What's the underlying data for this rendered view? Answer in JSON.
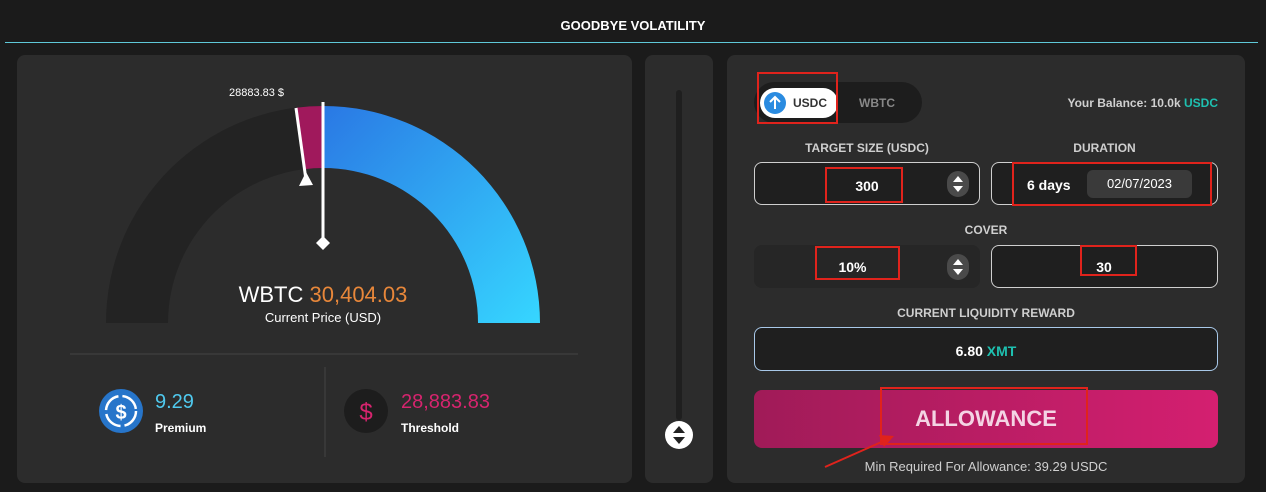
{
  "header": {
    "title": "GOODBYE VOLATILITY"
  },
  "gauge": {
    "threshold_marker": "28883.83 $",
    "asset": "WBTC",
    "price": "30,404.03",
    "price_caption": "Current Price (USD)"
  },
  "stats": [
    {
      "value": "9.29",
      "label": "Premium"
    },
    {
      "value": "28,883.83",
      "label": "Threshold"
    }
  ],
  "form": {
    "tabs": [
      "USDC",
      "WBTC"
    ],
    "balance_label": "Your Balance: 10.0k",
    "balance_unit": "USDC",
    "target_size_label": "TARGET SIZE (USDC)",
    "target_size": "300",
    "duration_label": "DURATION",
    "duration": "6 days",
    "date": "02/07/2023",
    "cover_label": "COVER",
    "cover_percent": "10%",
    "cover_value": "30",
    "reward_label": "CURRENT LIQUIDITY REWARD",
    "reward": "6.80",
    "reward_unit": "XMT",
    "button": "ALLOWANCE",
    "min_required": "Min Required For Allowance: 39.29 USDC"
  }
}
